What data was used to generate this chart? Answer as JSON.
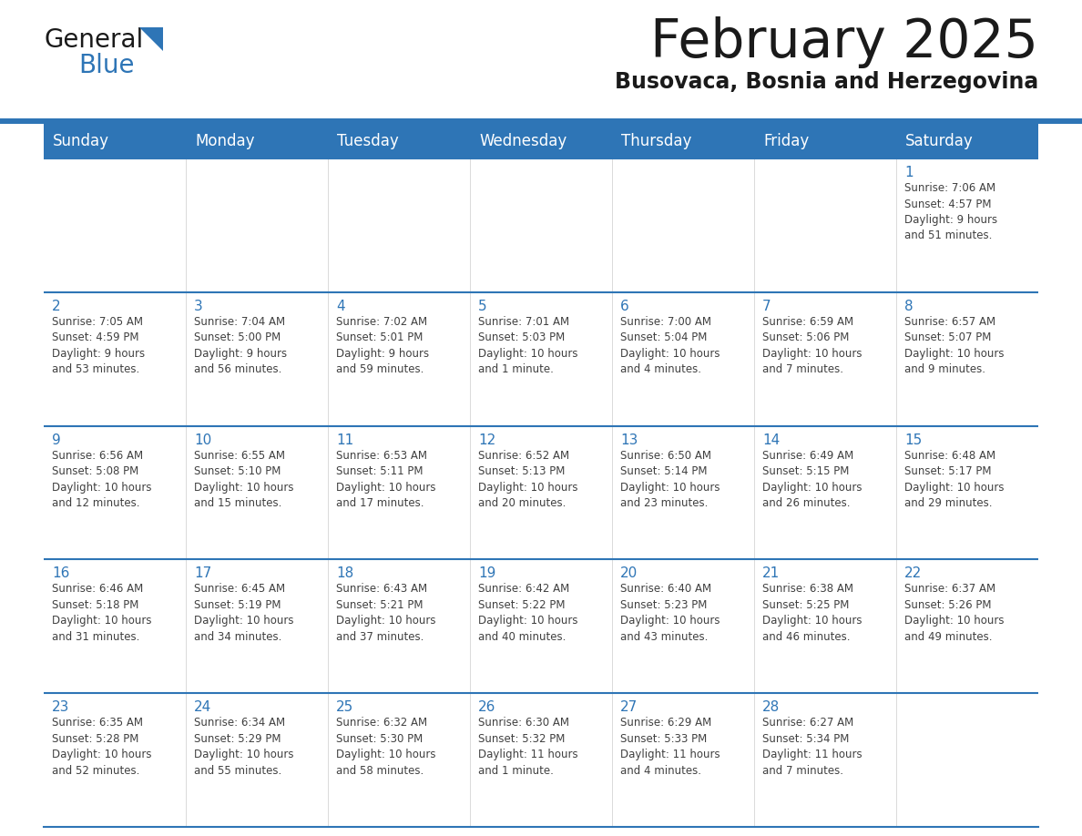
{
  "title": "February 2025",
  "subtitle": "Busovaca, Bosnia and Herzegovina",
  "header_color": "#2e75b6",
  "header_text_color": "#ffffff",
  "cell_bg_color": "#ffffff",
  "cell_border_color": "#2e75b6",
  "day_number_color": "#2e75b6",
  "text_color": "#404040",
  "days_of_week": [
    "Sunday",
    "Monday",
    "Tuesday",
    "Wednesday",
    "Thursday",
    "Friday",
    "Saturday"
  ],
  "weeks": [
    [
      {
        "day": "",
        "info": ""
      },
      {
        "day": "",
        "info": ""
      },
      {
        "day": "",
        "info": ""
      },
      {
        "day": "",
        "info": ""
      },
      {
        "day": "",
        "info": ""
      },
      {
        "day": "",
        "info": ""
      },
      {
        "day": "1",
        "info": "Sunrise: 7:06 AM\nSunset: 4:57 PM\nDaylight: 9 hours\nand 51 minutes."
      }
    ],
    [
      {
        "day": "2",
        "info": "Sunrise: 7:05 AM\nSunset: 4:59 PM\nDaylight: 9 hours\nand 53 minutes."
      },
      {
        "day": "3",
        "info": "Sunrise: 7:04 AM\nSunset: 5:00 PM\nDaylight: 9 hours\nand 56 minutes."
      },
      {
        "day": "4",
        "info": "Sunrise: 7:02 AM\nSunset: 5:01 PM\nDaylight: 9 hours\nand 59 minutes."
      },
      {
        "day": "5",
        "info": "Sunrise: 7:01 AM\nSunset: 5:03 PM\nDaylight: 10 hours\nand 1 minute."
      },
      {
        "day": "6",
        "info": "Sunrise: 7:00 AM\nSunset: 5:04 PM\nDaylight: 10 hours\nand 4 minutes."
      },
      {
        "day": "7",
        "info": "Sunrise: 6:59 AM\nSunset: 5:06 PM\nDaylight: 10 hours\nand 7 minutes."
      },
      {
        "day": "8",
        "info": "Sunrise: 6:57 AM\nSunset: 5:07 PM\nDaylight: 10 hours\nand 9 minutes."
      }
    ],
    [
      {
        "day": "9",
        "info": "Sunrise: 6:56 AM\nSunset: 5:08 PM\nDaylight: 10 hours\nand 12 minutes."
      },
      {
        "day": "10",
        "info": "Sunrise: 6:55 AM\nSunset: 5:10 PM\nDaylight: 10 hours\nand 15 minutes."
      },
      {
        "day": "11",
        "info": "Sunrise: 6:53 AM\nSunset: 5:11 PM\nDaylight: 10 hours\nand 17 minutes."
      },
      {
        "day": "12",
        "info": "Sunrise: 6:52 AM\nSunset: 5:13 PM\nDaylight: 10 hours\nand 20 minutes."
      },
      {
        "day": "13",
        "info": "Sunrise: 6:50 AM\nSunset: 5:14 PM\nDaylight: 10 hours\nand 23 minutes."
      },
      {
        "day": "14",
        "info": "Sunrise: 6:49 AM\nSunset: 5:15 PM\nDaylight: 10 hours\nand 26 minutes."
      },
      {
        "day": "15",
        "info": "Sunrise: 6:48 AM\nSunset: 5:17 PM\nDaylight: 10 hours\nand 29 minutes."
      }
    ],
    [
      {
        "day": "16",
        "info": "Sunrise: 6:46 AM\nSunset: 5:18 PM\nDaylight: 10 hours\nand 31 minutes."
      },
      {
        "day": "17",
        "info": "Sunrise: 6:45 AM\nSunset: 5:19 PM\nDaylight: 10 hours\nand 34 minutes."
      },
      {
        "day": "18",
        "info": "Sunrise: 6:43 AM\nSunset: 5:21 PM\nDaylight: 10 hours\nand 37 minutes."
      },
      {
        "day": "19",
        "info": "Sunrise: 6:42 AM\nSunset: 5:22 PM\nDaylight: 10 hours\nand 40 minutes."
      },
      {
        "day": "20",
        "info": "Sunrise: 6:40 AM\nSunset: 5:23 PM\nDaylight: 10 hours\nand 43 minutes."
      },
      {
        "day": "21",
        "info": "Sunrise: 6:38 AM\nSunset: 5:25 PM\nDaylight: 10 hours\nand 46 minutes."
      },
      {
        "day": "22",
        "info": "Sunrise: 6:37 AM\nSunset: 5:26 PM\nDaylight: 10 hours\nand 49 minutes."
      }
    ],
    [
      {
        "day": "23",
        "info": "Sunrise: 6:35 AM\nSunset: 5:28 PM\nDaylight: 10 hours\nand 52 minutes."
      },
      {
        "day": "24",
        "info": "Sunrise: 6:34 AM\nSunset: 5:29 PM\nDaylight: 10 hours\nand 55 minutes."
      },
      {
        "day": "25",
        "info": "Sunrise: 6:32 AM\nSunset: 5:30 PM\nDaylight: 10 hours\nand 58 minutes."
      },
      {
        "day": "26",
        "info": "Sunrise: 6:30 AM\nSunset: 5:32 PM\nDaylight: 11 hours\nand 1 minute."
      },
      {
        "day": "27",
        "info": "Sunrise: 6:29 AM\nSunset: 5:33 PM\nDaylight: 11 hours\nand 4 minutes."
      },
      {
        "day": "28",
        "info": "Sunrise: 6:27 AM\nSunset: 5:34 PM\nDaylight: 11 hours\nand 7 minutes."
      },
      {
        "day": "",
        "info": ""
      }
    ]
  ]
}
